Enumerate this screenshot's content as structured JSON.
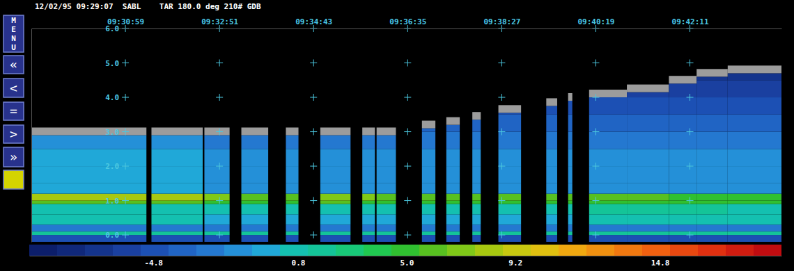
{
  "chart_data": {
    "type": "heatmap",
    "title": "12/02/95 09:29:07  SABL    TAR 180.0 deg 210# GDB",
    "menu": [
      "MENU",
      "«",
      "<",
      "=",
      ">",
      "»"
    ],
    "xlim": [
      34147,
      35040
    ],
    "xticks": [
      {
        "value": 34259,
        "label": "09:30:59"
      },
      {
        "value": 34371,
        "label": "09:32:51"
      },
      {
        "value": 34483,
        "label": "09:34:43"
      },
      {
        "value": 34595,
        "label": "09:36:35"
      },
      {
        "value": 34707,
        "label": "09:38:27"
      },
      {
        "value": 34819,
        "label": "09:40:19"
      },
      {
        "value": 34931,
        "label": "09:42:11"
      }
    ],
    "ylim": [
      -0.2,
      6.0
    ],
    "yticks": [
      {
        "value": 0,
        "label": "0.0"
      },
      {
        "value": 1,
        "label": "1.0"
      },
      {
        "value": 2,
        "label": "2.0"
      },
      {
        "value": 3,
        "label": "3.0"
      },
      {
        "value": 4,
        "label": "4.0"
      },
      {
        "value": 5,
        "label": "5.0"
      },
      {
        "value": 6,
        "label": "6.0"
      }
    ],
    "grid": true,
    "y_edges": [
      -0.2,
      0,
      0.1,
      0.3,
      0.6,
      0.9,
      1.0,
      1.2,
      1.5,
      2.0,
      2.5,
      3.0,
      3.5,
      4.0,
      4.5,
      5.0
    ],
    "segments": [
      {
        "start": 34147,
        "end": 34284,
        "top": 2.9,
        "values": [
          -4.8,
          1.5,
          -2.5,
          0.5,
          0.8,
          6.0,
          8.0,
          -0.5,
          -0.8,
          -0.5,
          -1.5
        ]
      },
      {
        "start": 34290,
        "end": 34351,
        "top": 2.9,
        "values": [
          -4.8,
          1.5,
          -2.5,
          0.5,
          0.8,
          5.8,
          7.8,
          -0.6,
          -0.8,
          -0.6,
          -1.6
        ]
      },
      {
        "start": 34353,
        "end": 34383,
        "top": 2.9,
        "values": [
          -4.8,
          1.5,
          -2.5,
          -0.3,
          0.5,
          5.2,
          6.8,
          -1.2,
          -1.4,
          -1.2,
          -2.2
        ]
      },
      {
        "start": 34397,
        "end": 34429,
        "top": 2.9,
        "values": [
          -4.8,
          1.5,
          -2.5,
          -0.3,
          0.6,
          5.0,
          6.5,
          -1.5,
          -1.5,
          -1.2,
          -2.2
        ]
      },
      {
        "start": 34450,
        "end": 34465,
        "top": 2.9,
        "values": [
          -4.8,
          1.5,
          -2.5,
          -0.4,
          0.5,
          5.0,
          6.2,
          -1.5,
          -1.5,
          -1.3,
          -2.3
        ]
      },
      {
        "start": 34491,
        "end": 34527,
        "top": 2.9,
        "values": [
          -4.8,
          1.5,
          -2.5,
          -0.3,
          0.6,
          5.6,
          7.2,
          -1.5,
          -1.6,
          -1.4,
          -2.3
        ]
      },
      {
        "start": 34541,
        "end": 34556,
        "top": 2.9,
        "values": [
          -4.8,
          1.5,
          -2.5,
          -0.3,
          0.5,
          5.2,
          6.8,
          -1.5,
          -1.6,
          -1.4,
          -2.4
        ]
      },
      {
        "start": 34558,
        "end": 34581,
        "top": 2.9,
        "values": [
          -4.8,
          1.5,
          -2.5,
          -0.4,
          0.5,
          5.0,
          6.5,
          -1.5,
          -1.6,
          -1.4,
          -2.4
        ]
      },
      {
        "start": 34612,
        "end": 34628,
        "top": 3.1,
        "values": [
          -4.8,
          1.5,
          -2.5,
          -0.5,
          0.3,
          4.8,
          6.0,
          -1.6,
          -1.7,
          -1.8,
          -2.6,
          -3.6
        ]
      },
      {
        "start": 34641,
        "end": 34657,
        "top": 3.2,
        "values": [
          -4.8,
          1.5,
          -2.6,
          -0.5,
          0.3,
          4.6,
          5.8,
          -1.6,
          -1.7,
          -1.8,
          -2.6,
          -3.6
        ]
      },
      {
        "start": 34672,
        "end": 34682,
        "top": 3.35,
        "values": [
          -4.8,
          1.5,
          -2.6,
          -0.5,
          0.4,
          4.8,
          5.5,
          -1.6,
          -1.8,
          -1.8,
          -2.6,
          -3.7
        ]
      },
      {
        "start": 34703,
        "end": 34730,
        "top": 3.55,
        "values": [
          -4.8,
          1.5,
          -2.5,
          -0.3,
          0.8,
          5.2,
          6.0,
          -1.5,
          -1.7,
          -1.8,
          -2.5,
          -3.6,
          -4.8
        ]
      },
      {
        "start": 34760,
        "end": 34773,
        "top": 3.75,
        "values": [
          -4.8,
          1.5,
          -2.5,
          -0.3,
          0.8,
          5.0,
          5.6,
          -1.5,
          -1.7,
          -1.8,
          -2.5,
          -3.6,
          -4.8
        ]
      },
      {
        "start": 34786,
        "end": 34791,
        "top": 3.9,
        "values": [
          -4.8,
          1.5,
          -2.5,
          -0.3,
          0.8,
          5.0,
          5.5,
          -1.5,
          -1.7,
          -1.8,
          -2.5,
          -3.6,
          -4.8
        ]
      },
      {
        "start": 34811,
        "end": 34856,
        "top": 4.0,
        "values": [
          -4.8,
          1.5,
          -2.5,
          0.3,
          1.2,
          5.2,
          6.0,
          -1.4,
          -1.6,
          -1.8,
          -2.5,
          -3.6,
          -4.8
        ]
      },
      {
        "start": 34856,
        "end": 34906,
        "top": 4.15,
        "values": [
          -4.8,
          1.5,
          -2.5,
          0.3,
          1.3,
          5.4,
          5.8,
          -1.4,
          -1.6,
          -1.8,
          -2.5,
          -3.6,
          -4.8,
          -5.8
        ]
      },
      {
        "start": 34906,
        "end": 34939,
        "top": 4.4,
        "values": [
          -4.8,
          1.5,
          -2.5,
          0.3,
          1.2,
          5.2,
          5.0,
          -1.4,
          -1.6,
          -1.9,
          -2.5,
          -3.6,
          -4.8,
          -5.8
        ]
      },
      {
        "start": 34939,
        "end": 34976,
        "top": 4.6,
        "values": [
          -4.8,
          1.5,
          -2.5,
          0.3,
          1.2,
          5.0,
          4.8,
          -1.4,
          -1.6,
          -1.9,
          -2.6,
          -3.6,
          -4.8,
          -5.8,
          -6.9
        ]
      },
      {
        "start": 34976,
        "end": 35040,
        "top": 4.7,
        "values": [
          -4.8,
          1.5,
          -2.5,
          0.2,
          1.0,
          4.8,
          4.6,
          -1.5,
          -1.6,
          -1.9,
          -2.6,
          -3.6,
          -4.8,
          -5.8,
          -6.9
        ]
      }
    ],
    "colorbar": {
      "range": [
        -9.6,
        19.5
      ],
      "ticks": [
        -4.8,
        0.8,
        {
          "value": 5,
          "label": "5.0"
        },
        9.2,
        14.8
      ],
      "colors": [
        "#0c1e6a",
        "#10287a",
        "#14348c",
        "#1a40a0",
        "#1c50b4",
        "#2064c4",
        "#2478d0",
        "#2490d8",
        "#20a8d8",
        "#14c0b0",
        "#14c498",
        "#18c878",
        "#20c850",
        "#30c030",
        "#58c020",
        "#80c818",
        "#a8c810",
        "#c8c810",
        "#e0c010",
        "#f0a810",
        "#f09010",
        "#f07810",
        "#f06010",
        "#e84810",
        "#e03010",
        "#d01c10",
        "#c00c10"
      ]
    }
  }
}
